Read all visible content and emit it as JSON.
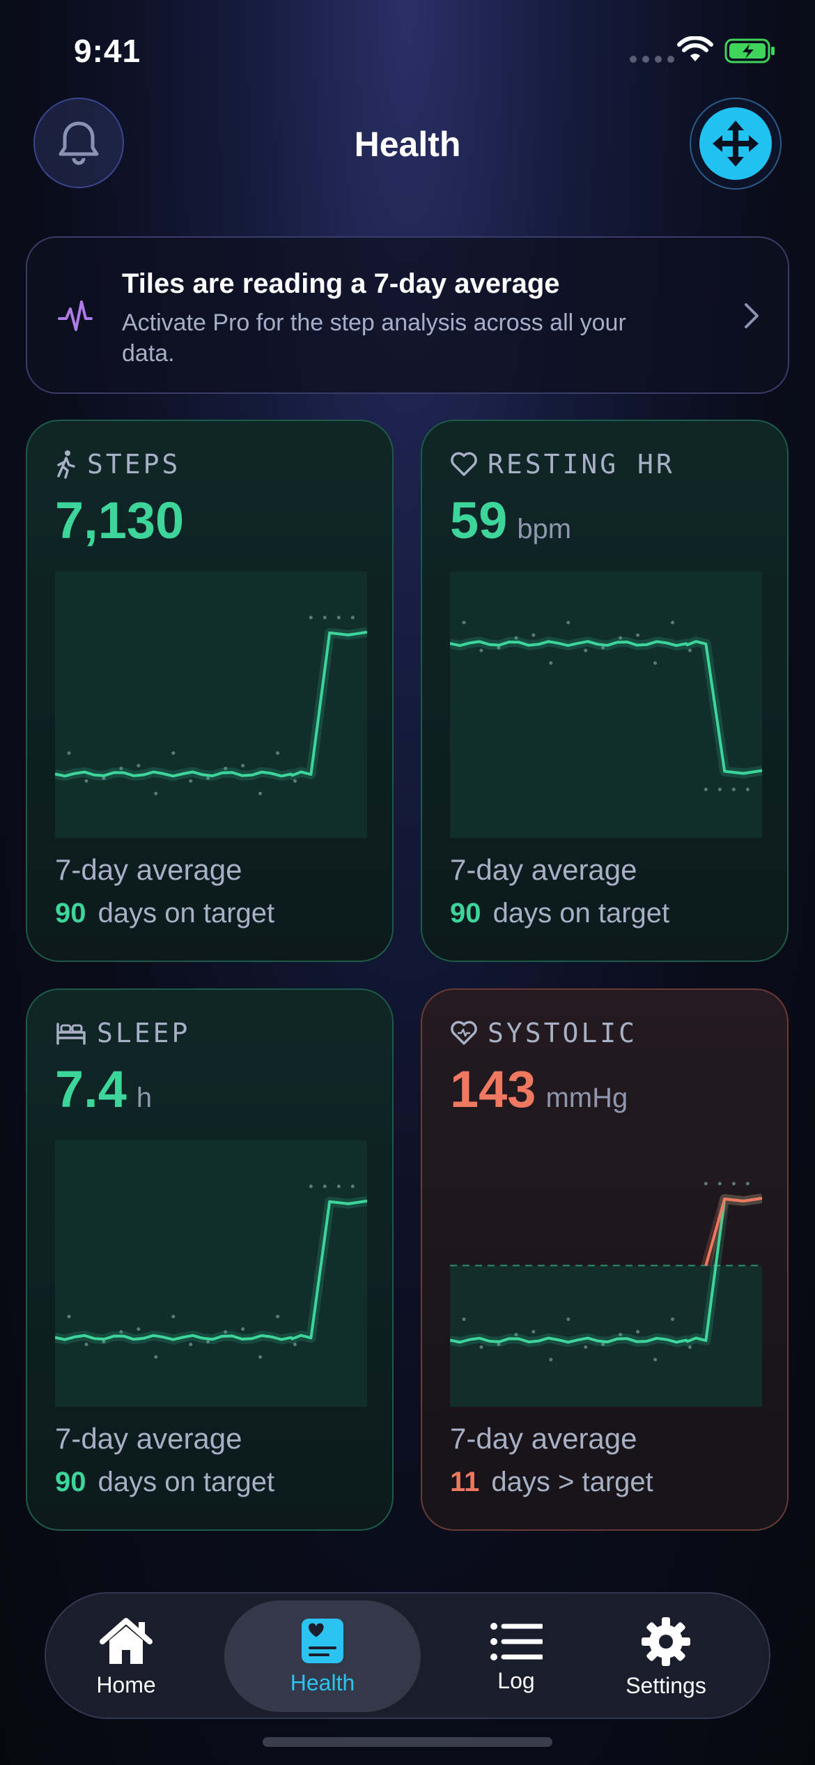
{
  "status_bar": {
    "time": "9:41"
  },
  "header": {
    "title": "Health"
  },
  "banner": {
    "title": "Tiles are reading a 7-day average",
    "text": "Activate Pro for the step analysis across all your data."
  },
  "tiles": [
    {
      "label": "STEPS",
      "value": "7,130",
      "unit": "",
      "caption": "7-day average",
      "count": "90",
      "count_text": "days on target",
      "status": "on-target",
      "icon": "walking-icon",
      "trend": {
        "start_level": 0.24,
        "end_level": 0.77,
        "step_fraction": 0.85
      }
    },
    {
      "label": "RESTING HR",
      "value": "59",
      "unit": "bpm",
      "caption": "7-day average",
      "count": "90",
      "count_text": "days on target",
      "status": "on-target",
      "icon": "heart-icon",
      "trend": {
        "start_level": 0.73,
        "end_level": 0.25,
        "step_fraction": 0.85
      }
    },
    {
      "label": "SLEEP",
      "value": "7.4",
      "unit": "h",
      "caption": "7-day average",
      "count": "90",
      "count_text": "days on target",
      "status": "on-target",
      "icon": "bed-icon",
      "trend": {
        "start_level": 0.26,
        "end_level": 0.77,
        "step_fraction": 0.85
      }
    },
    {
      "label": "SYSTOLIC",
      "value": "143",
      "unit": "mmHg",
      "caption": "7-day average",
      "count": "11",
      "count_text": "days > target",
      "status": "above-target",
      "icon": "heart-pulse-icon",
      "trend": {
        "start_level": 0.25,
        "end_level": 0.78,
        "step_fraction": 0.85,
        "target_level": 0.53
      }
    }
  ],
  "tabbar": {
    "items": [
      {
        "label": "Home",
        "icon": "home-icon",
        "active": false
      },
      {
        "label": "Health",
        "icon": "health-icon",
        "active": true
      },
      {
        "label": "Log",
        "icon": "list-icon",
        "active": false
      },
      {
        "label": "Settings",
        "icon": "gear-icon",
        "active": false
      }
    ]
  },
  "colors": {
    "accent_green": "#3ed59a",
    "accent_red": "#ef7860",
    "accent_cyan": "#1fc2f0"
  }
}
